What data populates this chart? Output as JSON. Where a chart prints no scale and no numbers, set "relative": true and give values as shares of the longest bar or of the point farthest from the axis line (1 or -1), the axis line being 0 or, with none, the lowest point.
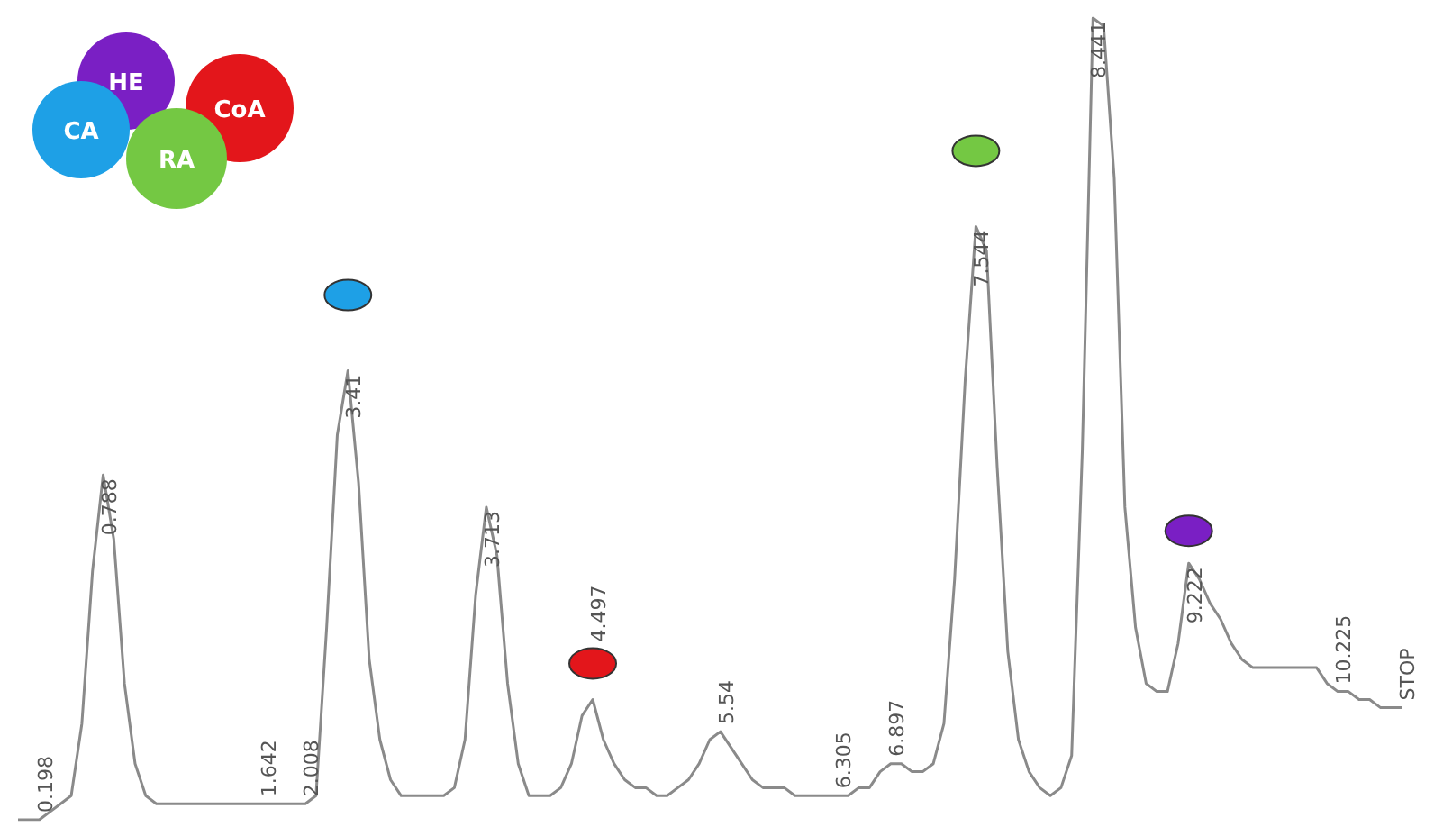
{
  "chart_data": {
    "type": "line",
    "relative": true,
    "annotations": [
      "HE",
      "CoA",
      "CA",
      "RA",
      "0.198",
      "0.788",
      "1.642",
      "2.008",
      "3.41",
      "3.713",
      "4.497",
      "5.54",
      "6.305",
      "6.897",
      "7.544",
      "8.441",
      "9.222",
      "10.225",
      "STOP"
    ],
    "categories": [
      null,
      null,
      null,
      null,
      null,
      null,
      null,
      null,
      null,
      null,
      null,
      null,
      null,
      null,
      null,
      null,
      null,
      null,
      null,
      null,
      null,
      null,
      null,
      null,
      null,
      null,
      null,
      null,
      null,
      null,
      null,
      null,
      null,
      null,
      null,
      null,
      null,
      null,
      null,
      null,
      null,
      null,
      null,
      null,
      null,
      null,
      null,
      null,
      null,
      null,
      null,
      null,
      null,
      null,
      null,
      null,
      null,
      null,
      null,
      null,
      null,
      null,
      null,
      null,
      null,
      null,
      null,
      null,
      null,
      null,
      null,
      null,
      null,
      null,
      null,
      null,
      null,
      null,
      null,
      null,
      null,
      null,
      null,
      null,
      null,
      null,
      null,
      null,
      null,
      null,
      null,
      null,
      null,
      null,
      null,
      null,
      null,
      null,
      null,
      null,
      null,
      null,
      null,
      null,
      null,
      null,
      null,
      null,
      null,
      null,
      null,
      null,
      null,
      null,
      null,
      null,
      null,
      null,
      null,
      null,
      null,
      null,
      null,
      null,
      null,
      null,
      null,
      null,
      null,
      null,
      null
    ],
    "series": [
      {
        "color": "#8a8a8a",
        "values": [
          0,
          0,
          0,
          0.01,
          0.02,
          0.03,
          0.12,
          0.31,
          0.43,
          0.35,
          0.17,
          0.07,
          0.03,
          0.02,
          0.02,
          0.02,
          0.02,
          0.02,
          0.02,
          0.02,
          0.02,
          0.02,
          0.02,
          0.02,
          0.02,
          0.02,
          0.02,
          0.02,
          0.03,
          0.24,
          0.48,
          0.56,
          0.42,
          0.2,
          0.1,
          0.05,
          0.03,
          0.03,
          0.03,
          0.03,
          0.03,
          0.04,
          0.1,
          0.28,
          0.39,
          0.33,
          0.17,
          0.07,
          0.03,
          0.03,
          0.03,
          0.04,
          0.07,
          0.13,
          0.15,
          0.1,
          0.07,
          0.05,
          0.04,
          0.04,
          0.03,
          0.03,
          0.04,
          0.05,
          0.07,
          0.1,
          0.11,
          0.09,
          0.07,
          0.05,
          0.04,
          0.04,
          0.04,
          0.03,
          0.03,
          0.03,
          0.03,
          0.03,
          0.03,
          0.04,
          0.04,
          0.06,
          0.07,
          0.07,
          0.06,
          0.06,
          0.07,
          0.12,
          0.3,
          0.55,
          0.74,
          0.71,
          0.44,
          0.21,
          0.1,
          0.06,
          0.04,
          0.03,
          0.04,
          0.08,
          0.46,
          1,
          0.99,
          0.8,
          0.39,
          0.24,
          0.17,
          0.16,
          0.16,
          0.22,
          0.32,
          0.3,
          0.27,
          0.25,
          0.22,
          0.2,
          0.19,
          0.19,
          0.19,
          0.19,
          0.19,
          0.19,
          0.19,
          0.17,
          0.16,
          0.16,
          0.15,
          0.15,
          0.14,
          0.14,
          0.14
        ]
      }
    ]
  }
}
